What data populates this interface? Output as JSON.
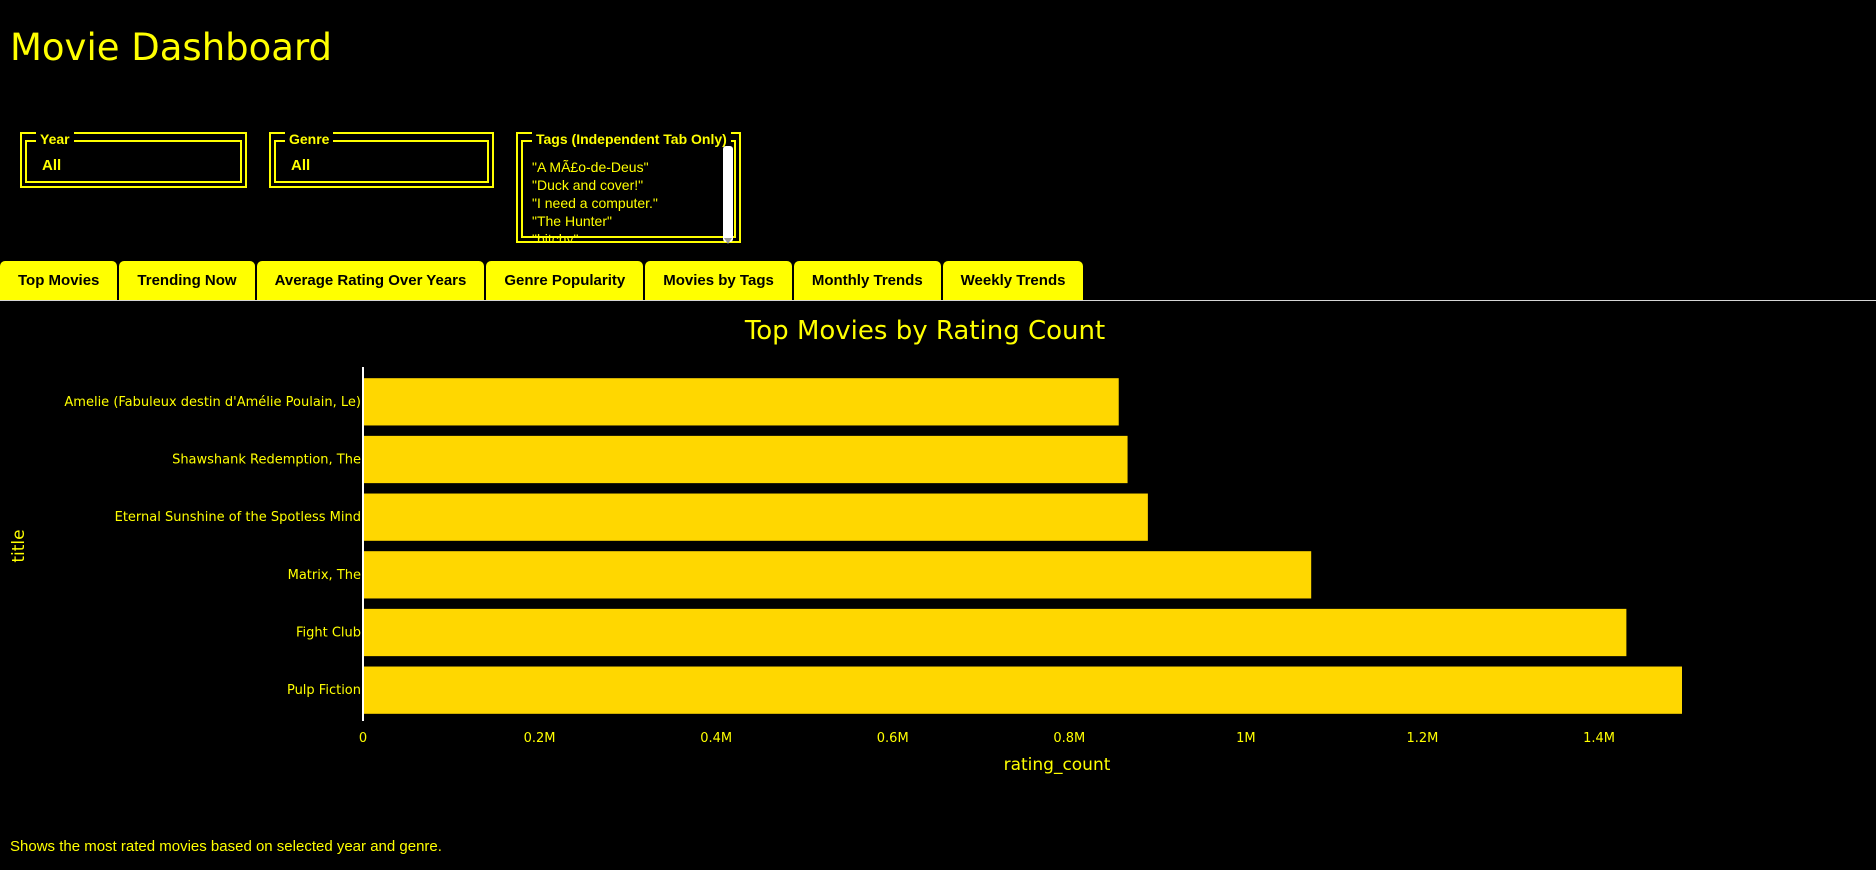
{
  "page": {
    "title": "Movie Dashboard",
    "description": "Shows the most rated movies based on selected year and genre."
  },
  "filters": {
    "year": {
      "label": "Year",
      "value": "All"
    },
    "genre": {
      "label": "Genre",
      "value": "All"
    },
    "tags": {
      "label": "Tags (Independent Tab Only)",
      "options": [
        "\"A MÃ£o-de-Deus\"",
        "\"Duck and cover!\"",
        "\"I need a computer.\"",
        "\"The Hunter\"",
        "\"bitchy\""
      ]
    }
  },
  "tabs": [
    {
      "label": "Top Movies",
      "active": true
    },
    {
      "label": "Trending Now"
    },
    {
      "label": "Average Rating Over Years"
    },
    {
      "label": "Genre Popularity"
    },
    {
      "label": "Movies by Tags"
    },
    {
      "label": "Monthly Trends"
    },
    {
      "label": "Weekly Trends"
    }
  ],
  "colors": {
    "accent": "#FFFF00",
    "bar": "#FFD700",
    "background": "#000000"
  },
  "chart_data": {
    "type": "bar",
    "orientation": "horizontal",
    "title": "Top Movies by Rating Count",
    "xlabel": "rating_count",
    "ylabel": "title",
    "categories": [
      "Amelie (Fabuleux destin d'Amélie Poulain, Le)",
      "Shawshank Redemption, The",
      "Eternal Sunshine of the Spotless Mind",
      "Matrix, The",
      "Fight Club",
      "Pulp Fiction"
    ],
    "values": [
      856000,
      866000,
      889000,
      1074000,
      1431000,
      1494000
    ],
    "xlim": [
      0,
      1494000
    ],
    "xticks": [
      {
        "value": 0,
        "label": "0"
      },
      {
        "value": 200000,
        "label": "0.2M"
      },
      {
        "value": 400000,
        "label": "0.4M"
      },
      {
        "value": 600000,
        "label": "0.6M"
      },
      {
        "value": 800000,
        "label": "0.8M"
      },
      {
        "value": 1000000,
        "label": "1M"
      },
      {
        "value": 1200000,
        "label": "1.2M"
      },
      {
        "value": 1400000,
        "label": "1.4M"
      }
    ],
    "grid": false
  }
}
